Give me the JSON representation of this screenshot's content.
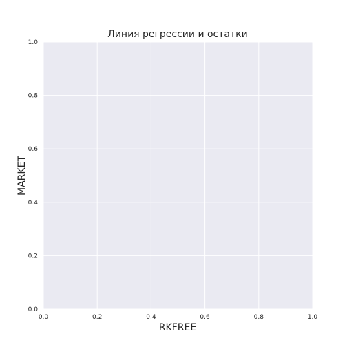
{
  "chart_data": {
    "type": "scatter",
    "title": "Линия регрессии и остатки",
    "xlabel": "RKFREE",
    "ylabel": "MARKET",
    "xlim": [
      0.0,
      1.0
    ],
    "ylim": [
      0.0,
      1.0
    ],
    "x_ticks": [
      "0.0",
      "0.2",
      "0.4",
      "0.6",
      "0.8",
      "1.0"
    ],
    "y_ticks": [
      "0.0",
      "0.2",
      "0.4",
      "0.6",
      "0.8",
      "1.0"
    ],
    "grid": true,
    "series": [],
    "colors": {
      "plot_background": "#eaeaf2",
      "grid": "#ffffff",
      "text": "#262626"
    }
  }
}
